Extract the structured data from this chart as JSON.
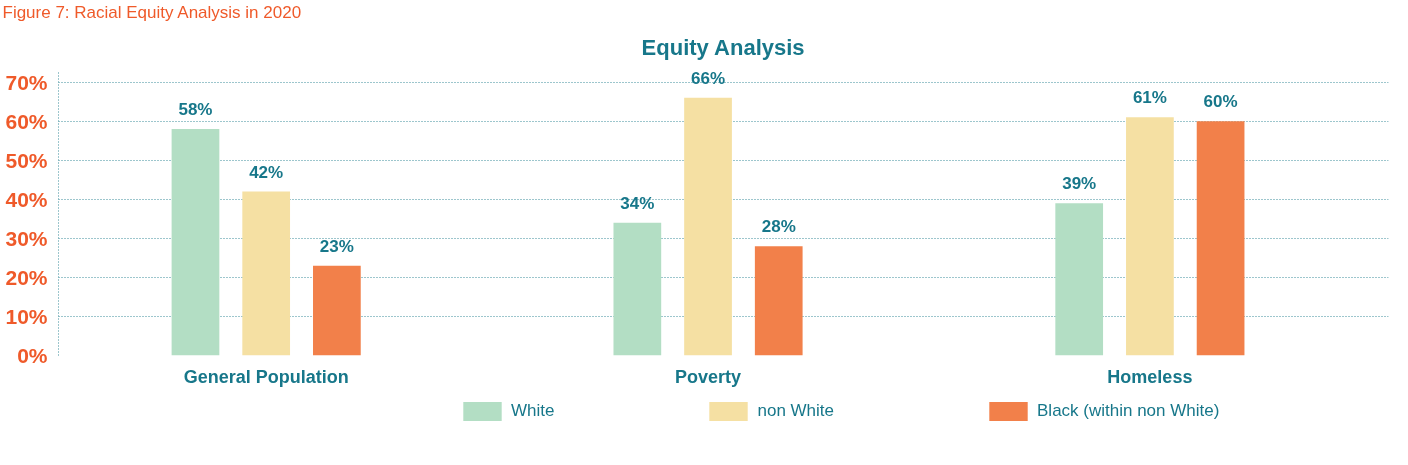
{
  "chart_data": {
    "type": "bar",
    "title": "Equity Analysis",
    "annotations": [
      "Figure 7: Racial Equity Analysis in 2020"
    ],
    "categories": [
      "General Population",
      "Poverty",
      "Homeless"
    ],
    "series": [
      {
        "name": "White",
        "color": "#b3dec4",
        "values": [
          58,
          34,
          39
        ]
      },
      {
        "name": "non White",
        "color": "#f5e0a3",
        "values": [
          42,
          66,
          61
        ]
      },
      {
        "name": "Black (within non White)",
        "color": "#f2804a",
        "values": [
          23,
          28,
          60
        ]
      }
    ],
    "ylim": [
      0,
      73
    ],
    "yticks": [
      {
        "value": 0,
        "label": "0%"
      },
      {
        "value": 10,
        "label": "10%"
      },
      {
        "value": 20,
        "label": "20%"
      },
      {
        "value": 30,
        "label": "30%"
      },
      {
        "value": 40,
        "label": "40%"
      },
      {
        "value": 50,
        "label": "50%"
      },
      {
        "value": 60,
        "label": "60%"
      },
      {
        "value": 70,
        "label": "70%"
      }
    ],
    "value_labels": [
      [
        "58%",
        "34%",
        "39%"
      ],
      [
        "42%",
        "66%",
        "61%"
      ],
      [
        "23%",
        "28%",
        "60%"
      ]
    ],
    "grid": "y",
    "legend": "bottom"
  }
}
